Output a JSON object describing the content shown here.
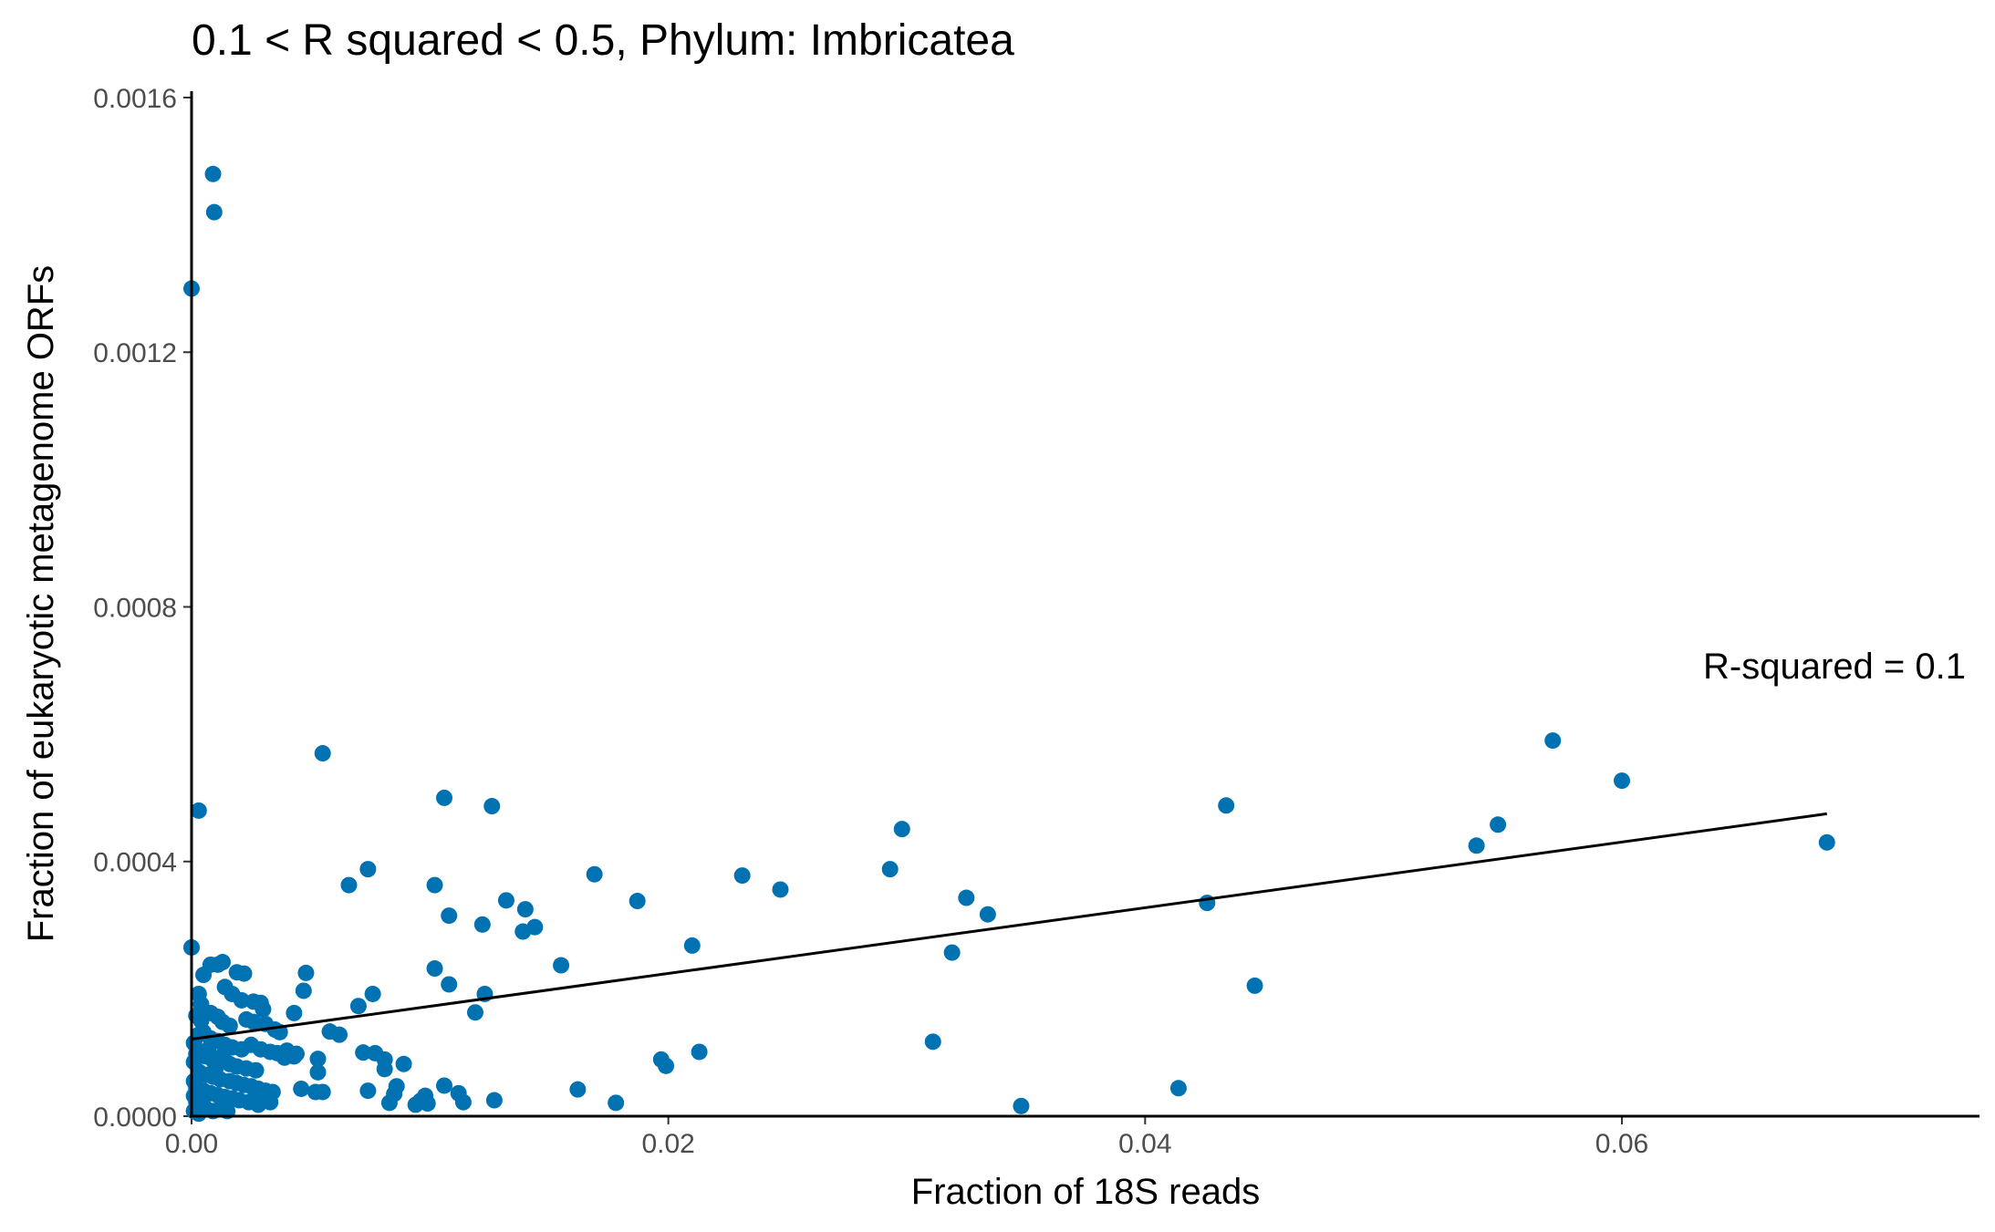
{
  "chart_data": {
    "type": "scatter",
    "title": "0.1 < R squared < 0.5, Phylum:  Imbricatea",
    "xlabel": "Fraction of 18S reads",
    "ylabel": "Fraction of eukaryotic metagenome ORFs",
    "xlim": [
      0,
      0.075
    ],
    "ylim": [
      0,
      0.00161
    ],
    "xticks": [
      0.0,
      0.02,
      0.04,
      0.06
    ],
    "xtick_labels": [
      "0.00",
      "0.02",
      "0.04",
      "0.06"
    ],
    "yticks": [
      0.0,
      0.0004,
      0.0008,
      0.0012,
      0.0016
    ],
    "ytick_labels": [
      "0.0000",
      "0.0004",
      "0.0008",
      "0.0012",
      "0.0016"
    ],
    "grid": false,
    "point_color": "#0072B2",
    "regression_line": {
      "x": [
        0.0,
        0.0686
      ],
      "y": [
        0.000121,
        0.000475
      ],
      "color": "#000000"
    },
    "annotation": "R-squared =  0.1",
    "points": [
      [
        0.0009,
        0.00148
      ],
      [
        0.00095,
        0.00142
      ],
      [
        0.0,
        0.0013
      ],
      [
        0.0003,
        0.00048
      ],
      [
        0.0055,
        0.00057
      ],
      [
        0.0106,
        0.0005
      ],
      [
        0.0126,
        0.000487
      ],
      [
        0.0434,
        0.000488
      ],
      [
        0.0571,
        0.00059
      ],
      [
        0.06,
        0.000527
      ],
      [
        0.0548,
        0.000458
      ],
      [
        0.0539,
        0.000425
      ],
      [
        0.0686,
        0.00043
      ],
      [
        0.0298,
        0.000451
      ],
      [
        0.0293,
        0.000388
      ],
      [
        0.0066,
        0.000363
      ],
      [
        0.0074,
        0.000388
      ],
      [
        0.0102,
        0.000363
      ],
      [
        0.0108,
        0.000315
      ],
      [
        0.0122,
        0.000301
      ],
      [
        0.0132,
        0.000339
      ],
      [
        0.014,
        0.000325
      ],
      [
        0.0144,
        0.000297
      ],
      [
        0.0139,
        0.00029
      ],
      [
        0.0169,
        0.00038
      ],
      [
        0.0187,
        0.000338
      ],
      [
        0.0231,
        0.000378
      ],
      [
        0.0247,
        0.000356
      ],
      [
        0.0325,
        0.000343
      ],
      [
        0.0334,
        0.000317
      ],
      [
        0.0426,
        0.000335
      ],
      [
        0.021,
        0.000268
      ],
      [
        0.0319,
        0.000257
      ],
      [
        0.0446,
        0.000205
      ],
      [
        0.0155,
        0.000237
      ],
      [
        0.0102,
        0.000232
      ],
      [
        0.0108,
        0.000207
      ],
      [
        0.0123,
        0.000192
      ],
      [
        0.0119,
        0.000163
      ],
      [
        0.0076,
        0.000192
      ],
      [
        0.007,
        0.000173
      ],
      [
        0.0048,
        0.000225
      ],
      [
        0.0047,
        0.000197
      ],
      [
        0.0043,
        0.000162
      ],
      [
        0.0058,
        0.000133
      ],
      [
        0.0062,
        0.000128
      ],
      [
        0.0311,
        0.000117
      ],
      [
        0.0213,
        0.000101
      ],
      [
        0.0197,
        8.9e-05
      ],
      [
        0.0199,
        7.9e-05
      ],
      [
        0.0089,
        8.2e-05
      ],
      [
        0.0072,
        0.0001
      ],
      [
        0.0077,
        9.9e-05
      ],
      [
        0.0081,
        8.9e-05
      ],
      [
        0.0081,
        7.4e-05
      ],
      [
        0.0053,
        9e-05
      ],
      [
        0.0053,
        6.9e-05
      ],
      [
        0.0162,
        4.2e-05
      ],
      [
        0.0178,
        2.1e-05
      ],
      [
        0.0348,
        1.6e-05
      ],
      [
        0.0414,
        4.4e-05
      ],
      [
        0.0106,
        4.8e-05
      ],
      [
        0.0112,
        3.6e-05
      ],
      [
        0.0114,
        2.2e-05
      ],
      [
        0.0127,
        2.5e-05
      ],
      [
        0.0086,
        4.7e-05
      ],
      [
        0.0085,
        3.5e-05
      ],
      [
        0.0083,
        2.1e-05
      ],
      [
        0.0096,
        2.4e-05
      ],
      [
        0.0094,
        1.8e-05
      ],
      [
        0.0099,
        2e-05
      ],
      [
        0.0098,
        3.2e-05
      ],
      [
        0.0074,
        4e-05
      ],
      [
        0.0046,
        4.3e-05
      ],
      [
        0.0052,
        3.8e-05
      ],
      [
        0.0055,
        3.8e-05
      ],
      [
        0.0034,
        3.8e-05
      ],
      [
        0.0027,
        3.5e-05
      ],
      [
        0.0,
        0.000265
      ],
      [
        0.0005,
        0.000222
      ],
      [
        0.0008,
        0.000238
      ],
      [
        0.0011,
        0.000238
      ],
      [
        0.0013,
        0.000242
      ],
      [
        0.0019,
        0.000226
      ],
      [
        0.0022,
        0.000224
      ],
      [
        0.0014,
        0.000203
      ],
      [
        0.0017,
        0.000192
      ],
      [
        0.0021,
        0.000182
      ],
      [
        0.0026,
        0.00018
      ],
      [
        0.0029,
        0.000178
      ],
      [
        0.003,
        0.000168
      ],
      [
        0.0003,
        0.000192
      ],
      [
        0.0004,
        0.000176
      ],
      [
        0.0002,
        0.000158
      ],
      [
        0.0008,
        0.000162
      ],
      [
        0.0011,
        0.000156
      ],
      [
        0.0013,
        0.000148
      ],
      [
        0.0016,
        0.000142
      ],
      [
        0.0023,
        0.000152
      ],
      [
        0.0026,
        0.000148
      ],
      [
        0.0031,
        0.000145
      ],
      [
        0.0035,
        0.000136
      ],
      [
        0.0037,
        0.000132
      ],
      [
        0.0003,
        0.000128
      ],
      [
        0.0005,
        0.000132
      ],
      [
        0.0008,
        0.000122
      ],
      [
        0.0011,
        0.000118
      ],
      [
        0.0014,
        0.000112
      ],
      [
        0.0017,
        0.000108
      ],
      [
        0.0021,
        0.000105
      ],
      [
        0.0025,
        0.000112
      ],
      [
        0.0029,
        0.000105
      ],
      [
        0.0033,
        0.000101
      ],
      [
        0.0036,
        9.9e-05
      ],
      [
        0.004,
        0.000103
      ],
      [
        0.0044,
        9.8e-05
      ],
      [
        0.0039,
        9.2e-05
      ],
      [
        0.0043,
        9.4e-05
      ],
      [
        0.0002,
        9.8e-05
      ],
      [
        0.0006,
        9.4e-05
      ],
      [
        0.0009,
        8.8e-05
      ],
      [
        0.0012,
        8.5e-05
      ],
      [
        0.0016,
        8.2e-05
      ],
      [
        0.0019,
        7.8e-05
      ],
      [
        0.0023,
        7.5e-05
      ],
      [
        0.0027,
        7.2e-05
      ],
      [
        0.0003,
        7e-05
      ],
      [
        0.0006,
        6.5e-05
      ],
      [
        0.0009,
        6.2e-05
      ],
      [
        0.0012,
        5.8e-05
      ],
      [
        0.0016,
        5.5e-05
      ],
      [
        0.0019,
        5.2e-05
      ],
      [
        0.0022,
        4.9e-05
      ],
      [
        0.0025,
        4.7e-05
      ],
      [
        0.0028,
        4.3e-05
      ],
      [
        0.0031,
        4e-05
      ],
      [
        0.0002,
        4.5e-05
      ],
      [
        0.0005,
        4e-05
      ],
      [
        0.0008,
        3.6e-05
      ],
      [
        0.0011,
        3.3e-05
      ],
      [
        0.0014,
        3e-05
      ],
      [
        0.0017,
        2.8e-05
      ],
      [
        0.002,
        2.5e-05
      ],
      [
        0.0024,
        2.2e-05
      ],
      [
        0.0028,
        1.8e-05
      ],
      [
        0.0033,
        2.2e-05
      ],
      [
        0.0002,
        2.2e-05
      ],
      [
        0.0004,
        1.8e-05
      ],
      [
        0.0006,
        1.2e-05
      ],
      [
        0.0009,
        8e-06
      ],
      [
        0.0012,
        1.2e-05
      ],
      [
        0.0015,
        8e-06
      ],
      [
        0.0001,
        8e-06
      ],
      [
        0.0003,
        4e-06
      ],
      [
        0.0001,
        0.000115
      ],
      [
        0.0001,
        8.5e-05
      ],
      [
        0.0001,
        5.5e-05
      ],
      [
        0.0001,
        3.2e-05
      ],
      [
        0.0004,
        0.00015
      ],
      [
        0.0007,
        0.000105
      ],
      [
        0.001,
        7.5e-05
      ],
      [
        0.0013,
        9.5e-05
      ]
    ]
  }
}
